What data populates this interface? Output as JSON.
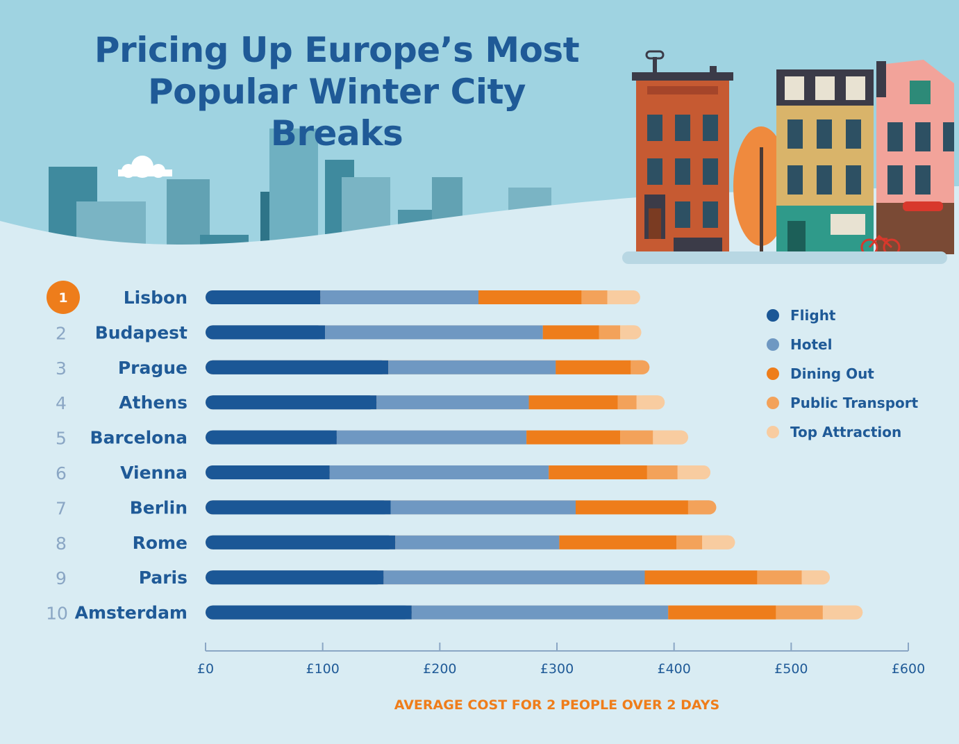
{
  "title_lines": [
    "Pricing Up Europe’s Most",
    "Popular Winter City Breaks"
  ],
  "colors": {
    "flight": "#1b5796",
    "hotel": "#6f98c2",
    "dining": "#ee7d1b",
    "transport": "#f3a25a",
    "attraction": "#f8ccA0",
    "title": "#1f5a97",
    "background": "#d9ecf3",
    "sky": "#9fd3e1"
  },
  "chart_data": {
    "type": "bar",
    "orientation": "horizontal",
    "stacked": true,
    "title": "Pricing Up Europe’s Most Popular Winter City Breaks",
    "xlabel": "AVERAGE COST FOR 2 PEOPLE OVER 2 DAYS",
    "ylabel": "",
    "xlim": [
      0,
      600
    ],
    "xticks": [
      "£0",
      "£100",
      "£200",
      "£300",
      "£400",
      "£500",
      "£600"
    ],
    "ranks": [
      "1",
      "2",
      "3",
      "4",
      "5",
      "6",
      "7",
      "8",
      "9",
      "10"
    ],
    "categories": [
      "Lisbon",
      "Budapest",
      "Prague",
      "Athens",
      "Barcelona",
      "Vienna",
      "Berlin",
      "Rome",
      "Paris",
      "Amsterdam"
    ],
    "legend_position": "right",
    "series": [
      {
        "name": "Flight",
        "color": "#1b5796",
        "values": [
          98,
          102,
          156,
          146,
          112,
          106,
          158,
          162,
          152,
          176
        ]
      },
      {
        "name": "Hotel",
        "color": "#6f98c2",
        "values": [
          135,
          186,
          143,
          130,
          162,
          187,
          158,
          140,
          223,
          219
        ]
      },
      {
        "name": "Dining Out",
        "color": "#ee7d1b",
        "values": [
          88,
          48,
          64,
          76,
          80,
          84,
          96,
          100,
          96,
          92
        ]
      },
      {
        "name": "Public Transport",
        "color": "#f3a25a",
        "values": [
          22,
          18,
          16,
          16,
          28,
          26,
          24,
          22,
          38,
          40
        ]
      },
      {
        "name": "Top Attraction",
        "color": "#f8cca0",
        "values": [
          28,
          18,
          0,
          24,
          30,
          28,
          0,
          28,
          24,
          34
        ]
      }
    ]
  }
}
